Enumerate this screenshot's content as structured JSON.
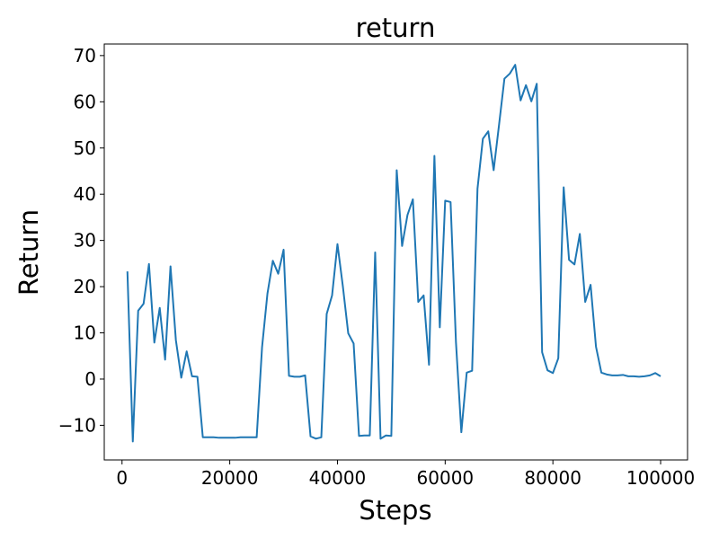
{
  "chart_data": {
    "type": "line",
    "title": "return",
    "xlabel": "Steps",
    "ylabel": "Return",
    "xlim": [
      -3300,
      105000
    ],
    "ylim": [
      -17.5,
      72.5
    ],
    "xticks": [
      0,
      20000,
      40000,
      60000,
      80000,
      100000
    ],
    "xtick_labels": [
      "0",
      "20000",
      "40000",
      "60000",
      "80000",
      "100000"
    ],
    "yticks": [
      -10,
      0,
      10,
      20,
      30,
      40,
      50,
      60,
      70
    ],
    "ytick_labels": [
      "−10",
      "0",
      "10",
      "20",
      "30",
      "40",
      "50",
      "60",
      "70"
    ],
    "grid": false,
    "line_color": "#1f77b4",
    "series": [
      {
        "x": [
          1000,
          2000,
          3000,
          4000,
          5000,
          6000,
          7000,
          8000,
          9000,
          10000,
          11000,
          12000,
          13000,
          14000,
          15000,
          16000,
          17000,
          18000,
          19000,
          20000,
          21000,
          22000,
          23000,
          24000,
          25000,
          26000,
          27000,
          28000,
          29000,
          30000,
          31000,
          32000,
          33000,
          34000,
          35000,
          36000,
          37000,
          38000,
          39000,
          40000,
          41000,
          42000,
          43000,
          44000,
          45000,
          46000,
          47000,
          48000,
          49000,
          50000,
          51000,
          52000,
          53000,
          54000,
          55000,
          56000,
          57000,
          58000,
          59000,
          60000,
          61000,
          62000,
          63000,
          64000,
          65000,
          66000,
          67000,
          68000,
          69000,
          70000,
          71000,
          72000,
          73000,
          74000,
          75000,
          76000,
          77000,
          78000,
          79000,
          80000,
          81000,
          82000,
          83000,
          84000,
          85000,
          86000,
          87000,
          88000,
          89000,
          90000,
          91000,
          92000,
          93000,
          94000,
          95000,
          96000,
          97000,
          98000,
          99000,
          100000
        ],
        "y": [
          23.3,
          -13.5,
          14.8,
          16.3,
          24.9,
          7.9,
          15.4,
          4.2,
          24.4,
          8.4,
          0.3,
          6.0,
          0.6,
          0.5,
          -12.6,
          -12.6,
          -12.6,
          -12.7,
          -12.7,
          -12.7,
          -12.7,
          -12.6,
          -12.6,
          -12.6,
          -12.6,
          6.9,
          18.5,
          25.6,
          22.8,
          28.0,
          0.7,
          0.5,
          0.5,
          0.8,
          -12.4,
          -12.9,
          -12.6,
          14.1,
          18.1,
          29.2,
          20.1,
          9.9,
          7.7,
          -12.3,
          -12.2,
          -12.2,
          27.4,
          -12.9,
          -12.2,
          -12.3,
          45.2,
          28.8,
          35.5,
          38.9,
          16.7,
          18.1,
          3.1,
          48.3,
          11.2,
          38.6,
          38.3,
          8.0,
          -11.5,
          1.4,
          1.8,
          41.2,
          52.0,
          53.6,
          45.2,
          55.0,
          65.0,
          66.1,
          68.0,
          60.3,
          63.6,
          60.1,
          63.9,
          5.8,
          1.9,
          1.3,
          4.5,
          41.5,
          25.8,
          24.8,
          31.4,
          16.7,
          20.4,
          7.0,
          1.4,
          1.0,
          0.8,
          0.8,
          0.9,
          0.6,
          0.6,
          0.5,
          0.6,
          0.8,
          1.3,
          0.6
        ]
      }
    ]
  }
}
